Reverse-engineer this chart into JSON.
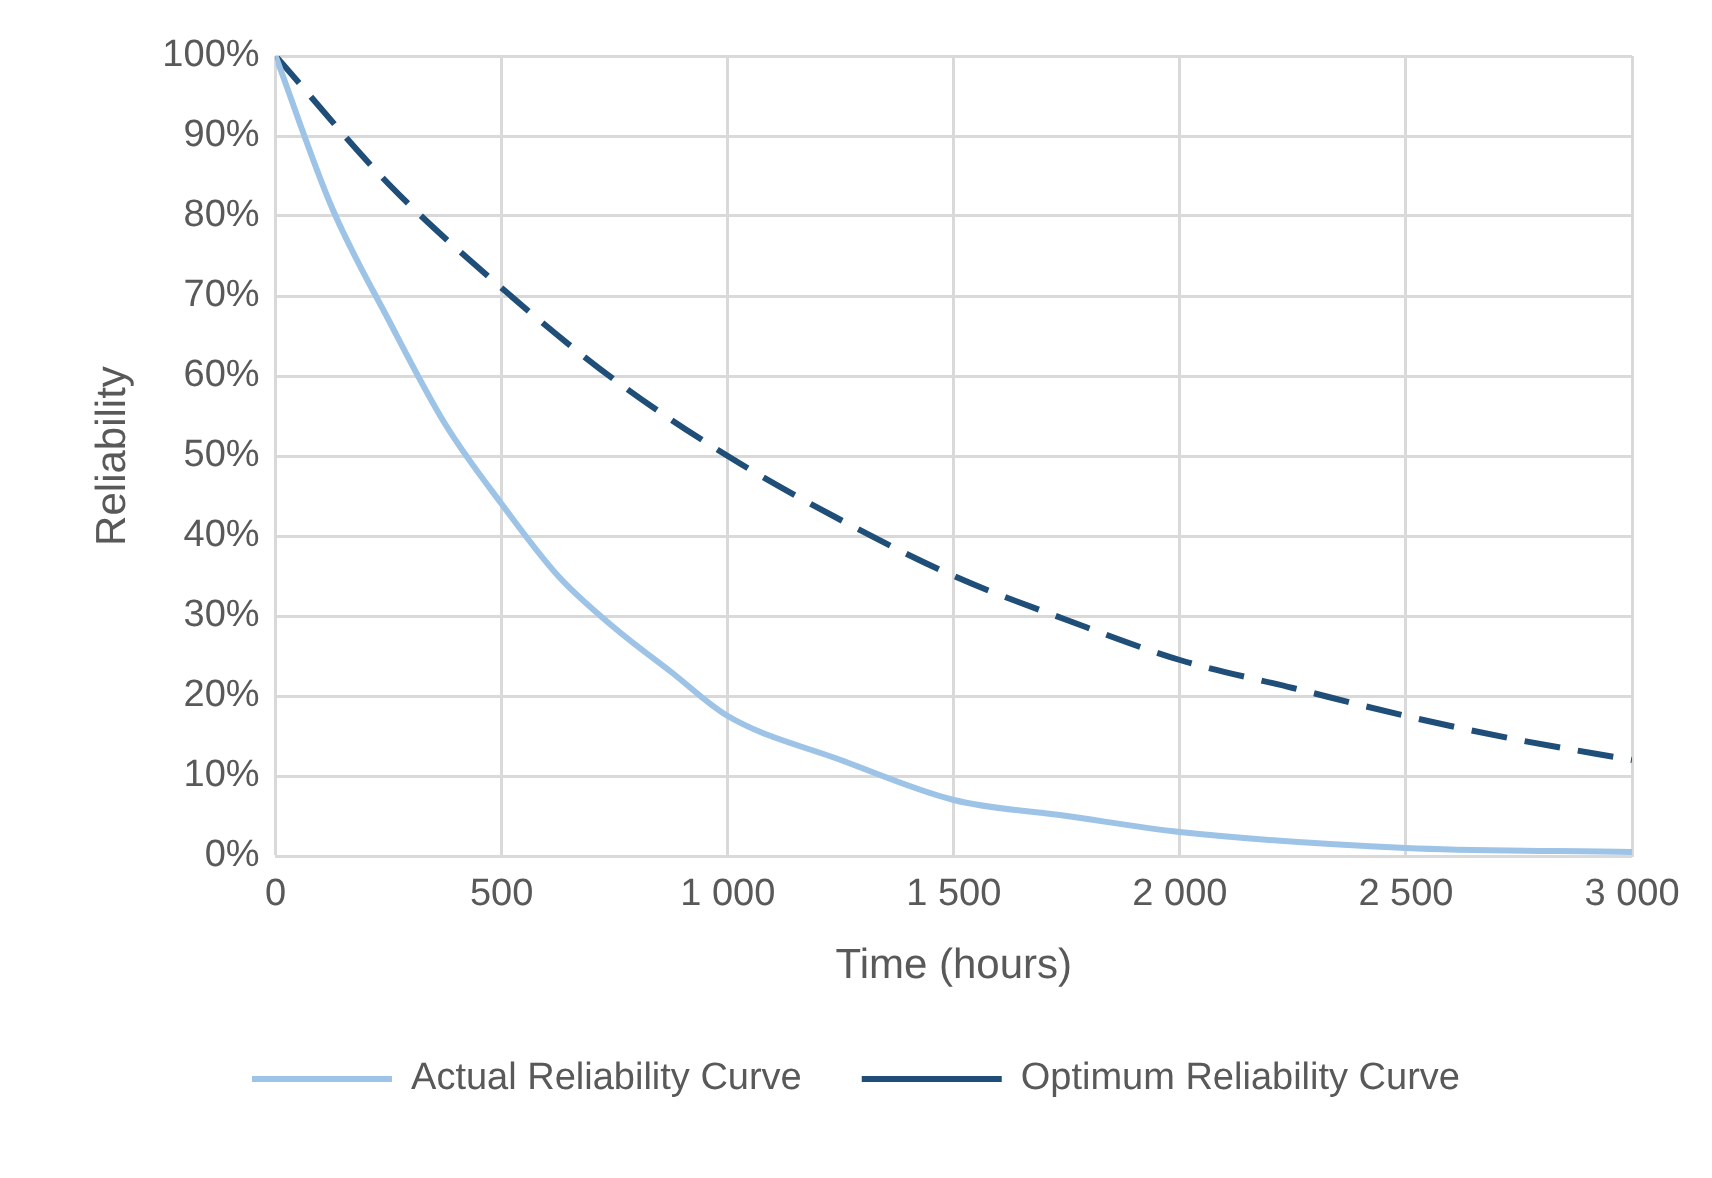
{
  "chart_data": {
    "type": "line",
    "xlabel": "Time (hours)",
    "ylabel": "Reliability",
    "xlim": [
      0,
      3000
    ],
    "xticks": [
      0,
      500,
      {
        "value": 1000,
        "label": "1 000"
      },
      {
        "value": 1500,
        "label": "1 500"
      },
      {
        "value": 2000,
        "label": "2 000"
      },
      {
        "value": 2500,
        "label": "2 500"
      },
      {
        "value": 3000,
        "label": "3 000"
      }
    ],
    "ylim": [
      0,
      100
    ],
    "yticks": [
      {
        "value": 0,
        "label": "0%"
      },
      {
        "value": 10,
        "label": "10%"
      },
      {
        "value": 20,
        "label": "20%"
      },
      {
        "value": 30,
        "label": "30%"
      },
      {
        "value": 40,
        "label": "40%"
      },
      {
        "value": 50,
        "label": "50%"
      },
      {
        "value": 60,
        "label": "60%"
      },
      {
        "value": 70,
        "label": "70%"
      },
      {
        "value": 80,
        "label": "80%"
      },
      {
        "value": 90,
        "label": "90%"
      },
      {
        "value": 100,
        "label": "100%"
      }
    ],
    "grid": true,
    "legend": "bottom",
    "marker": "none",
    "series": [
      {
        "name": "Actual Reliability Curve",
        "color": "#9dc3e6",
        "line_style": "solid",
        "x": [
          0,
          125,
          250,
          375,
          500,
          625,
          750,
          875,
          1000,
          1250,
          1500,
          1750,
          2000,
          2500,
          3000
        ],
        "values": [
          100,
          81,
          67,
          54,
          44,
          35,
          28.5,
          23,
          17.5,
          12,
          7,
          5,
          3,
          1,
          0.5
        ]
      },
      {
        "name": "Optimum Reliability Curve",
        "color": "#1f4e79",
        "line_style": "dashed",
        "x": [
          0,
          250,
          500,
          750,
          1000,
          1250,
          1500,
          1750,
          2000,
          2250,
          2500,
          2750,
          3000
        ],
        "values": [
          100,
          84,
          71,
          59.5,
          50,
          42,
          35,
          29.5,
          24.5,
          21,
          17.5,
          14.5,
          12
        ]
      }
    ]
  }
}
